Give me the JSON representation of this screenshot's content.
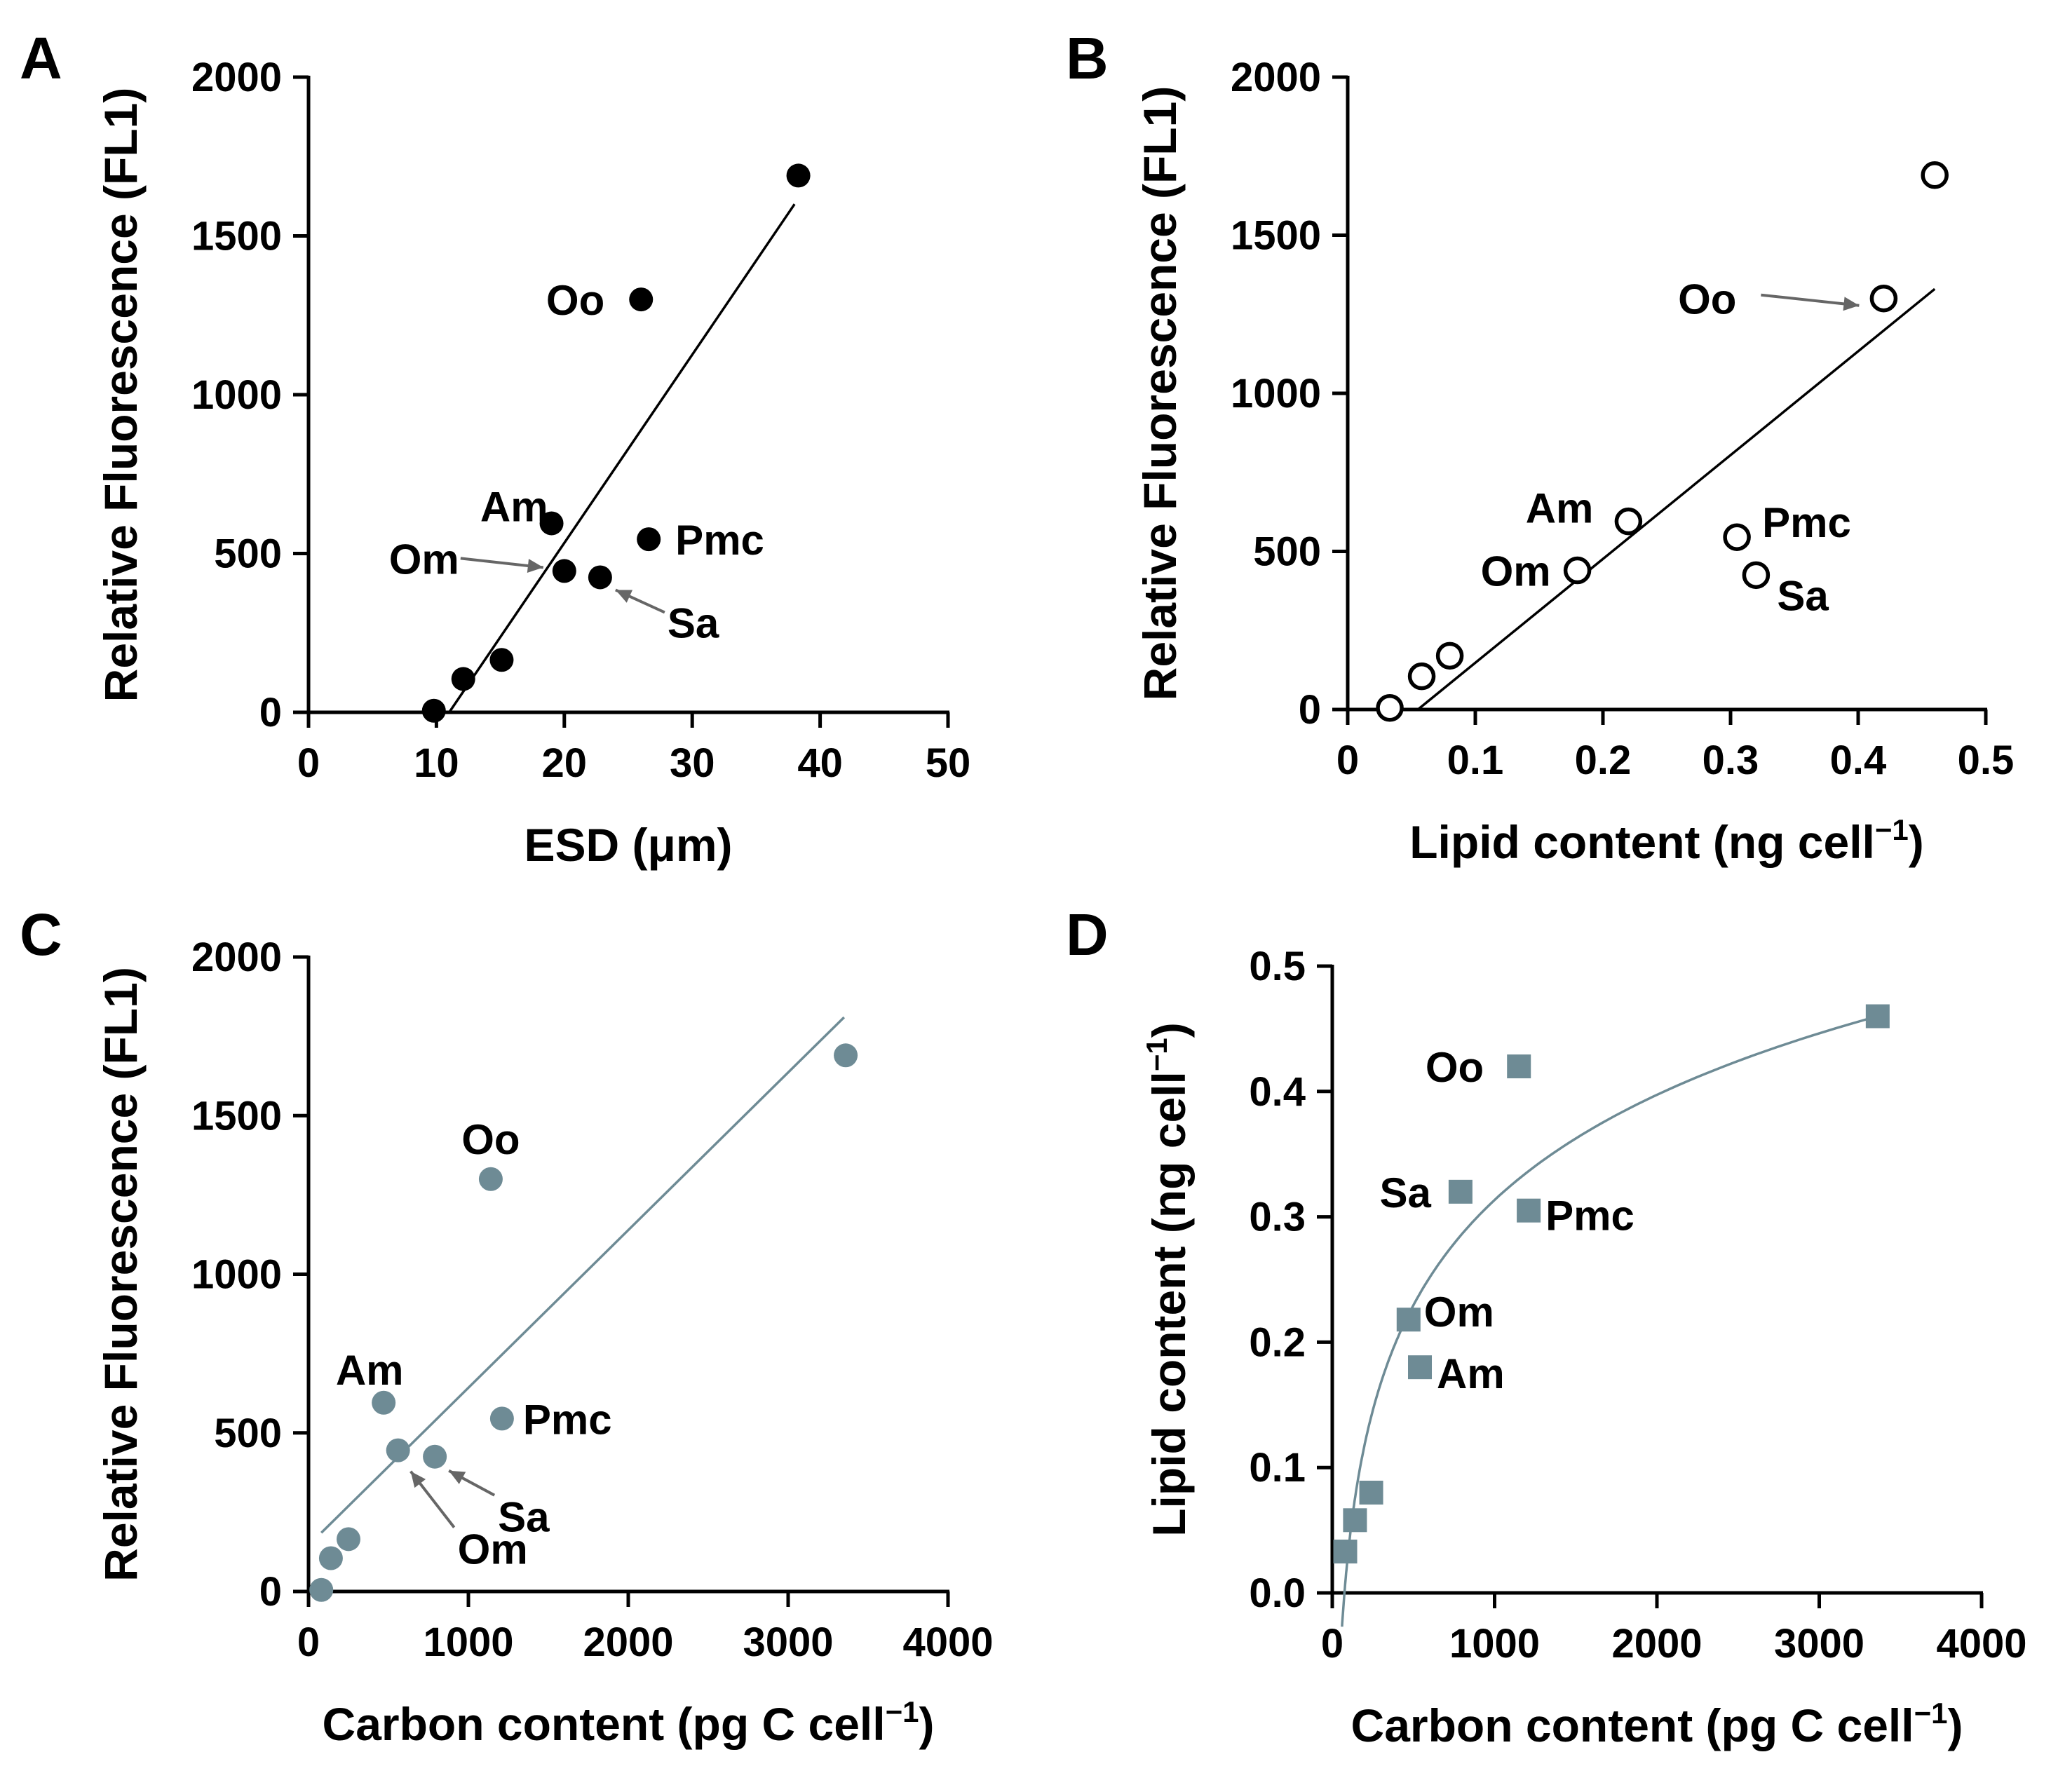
{
  "colors": {
    "black": "#000000",
    "teal": "#6e8b95",
    "arrow": "#666666"
  },
  "chart_data": [
    {
      "panel": "A",
      "type": "scatter",
      "xlabel": "ESD (μm)",
      "ylabel": "Relative Fluorescence (FL1)",
      "xlim": [
        0,
        50
      ],
      "ylim": [
        0,
        2000
      ],
      "xticks": [
        0,
        10,
        20,
        30,
        40,
        50
      ],
      "yticks": [
        0,
        500,
        1000,
        1500,
        2000
      ],
      "marker": "filled-circle",
      "color": "#000000",
      "points": [
        {
          "x": 9.8,
          "y": 5
        },
        {
          "x": 12.1,
          "y": 105
        },
        {
          "x": 15.1,
          "y": 165
        },
        {
          "x": 19.0,
          "y": 595,
          "label": "Am"
        },
        {
          "x": 20.0,
          "y": 445,
          "label": "Om"
        },
        {
          "x": 22.8,
          "y": 425,
          "label": "Sa"
        },
        {
          "x": 26.0,
          "y": 1300,
          "label": "Oo"
        },
        {
          "x": 26.6,
          "y": 545,
          "label": "Pmc"
        },
        {
          "x": 38.3,
          "y": 1690
        }
      ],
      "fit": {
        "kind": "linear",
        "x": [
          11.0,
          38.0
        ],
        "y": [
          0,
          1600
        ],
        "color": "#000000"
      }
    },
    {
      "panel": "B",
      "type": "scatter",
      "xlabel": "Lipid content (ng cell",
      "xlabel_sup": "−1",
      "xlabel_end": ")",
      "ylabel": "Relative Fluorescence (FL1)",
      "xlim": [
        0,
        0.5
      ],
      "ylim": [
        0,
        2000
      ],
      "xticks": [
        0,
        0.1,
        0.2,
        0.3,
        0.4,
        0.5
      ],
      "yticks": [
        0,
        500,
        1000,
        1500,
        2000
      ],
      "marker": "open-circle",
      "color": "#000000",
      "points": [
        {
          "x": 0.033,
          "y": 5
        },
        {
          "x": 0.058,
          "y": 105
        },
        {
          "x": 0.08,
          "y": 170
        },
        {
          "x": 0.18,
          "y": 440,
          "label": "Om"
        },
        {
          "x": 0.22,
          "y": 595,
          "label": "Am"
        },
        {
          "x": 0.305,
          "y": 545,
          "label": "Pmc"
        },
        {
          "x": 0.32,
          "y": 425,
          "label": "Sa"
        },
        {
          "x": 0.42,
          "y": 1300,
          "label": "Oo"
        },
        {
          "x": 0.46,
          "y": 1690
        }
      ],
      "fit": {
        "kind": "linear",
        "x": [
          0.055,
          0.46
        ],
        "y": [
          0,
          1330
        ],
        "color": "#000000"
      }
    },
    {
      "panel": "C",
      "type": "scatter",
      "xlabel": "Carbon content (pg C cell",
      "xlabel_sup": "−1",
      "xlabel_end": ")",
      "ylabel": "Relative Fluorescence (FL1)",
      "xlim": [
        0,
        4000
      ],
      "ylim": [
        0,
        2000
      ],
      "xticks": [
        0,
        1000,
        2000,
        3000,
        4000
      ],
      "yticks": [
        0,
        500,
        1000,
        1500,
        2000
      ],
      "marker": "filled-circle",
      "color": "#6e8b95",
      "points": [
        {
          "x": 80,
          "y": 5
        },
        {
          "x": 140,
          "y": 105
        },
        {
          "x": 250,
          "y": 165
        },
        {
          "x": 470,
          "y": 595,
          "label": "Am"
        },
        {
          "x": 560,
          "y": 445,
          "label": "Om"
        },
        {
          "x": 790,
          "y": 425,
          "label": "Sa"
        },
        {
          "x": 1140,
          "y": 1300,
          "label": "Oo"
        },
        {
          "x": 1210,
          "y": 545,
          "label": "Pmc"
        },
        {
          "x": 3360,
          "y": 1690
        }
      ],
      "fit": {
        "kind": "linear",
        "x": [
          80,
          3350
        ],
        "y": [
          185,
          1810
        ],
        "color": "#6e8b95"
      }
    },
    {
      "panel": "D",
      "type": "scatter",
      "xlabel": "Carbon content (pg C cell",
      "xlabel_sup": "−1",
      "xlabel_end": ")",
      "ylabel": "Lipid content (ng cell",
      "ylabel_sup": "−1",
      "ylabel_end": ")",
      "xlim": [
        0,
        4000
      ],
      "ylim": [
        0,
        0.5
      ],
      "xticks": [
        0,
        1000,
        2000,
        3000,
        4000
      ],
      "yticks": [
        0.0,
        0.1,
        0.2,
        0.3,
        0.4,
        0.5
      ],
      "ytick_labels": [
        "0.0",
        "0.1",
        "0.2",
        "0.3",
        "0.4",
        "0.5"
      ],
      "marker": "filled-square",
      "color": "#6e8b95",
      "points": [
        {
          "x": 80,
          "y": 0.033
        },
        {
          "x": 140,
          "y": 0.058
        },
        {
          "x": 240,
          "y": 0.08
        },
        {
          "x": 470,
          "y": 0.218,
          "label": "Om"
        },
        {
          "x": 540,
          "y": 0.18,
          "label": "Am"
        },
        {
          "x": 790,
          "y": 0.32,
          "label": "Sa"
        },
        {
          "x": 1150,
          "y": 0.42,
          "label": "Oo"
        },
        {
          "x": 1210,
          "y": 0.305,
          "label": "Pmc"
        },
        {
          "x": 3360,
          "y": 0.46
        }
      ],
      "fit": {
        "kind": "logarithmic",
        "x_range": [
          60,
          3350
        ],
        "a": -0.5224,
        "b": 0.121,
        "color": "#6e8b95"
      }
    }
  ]
}
